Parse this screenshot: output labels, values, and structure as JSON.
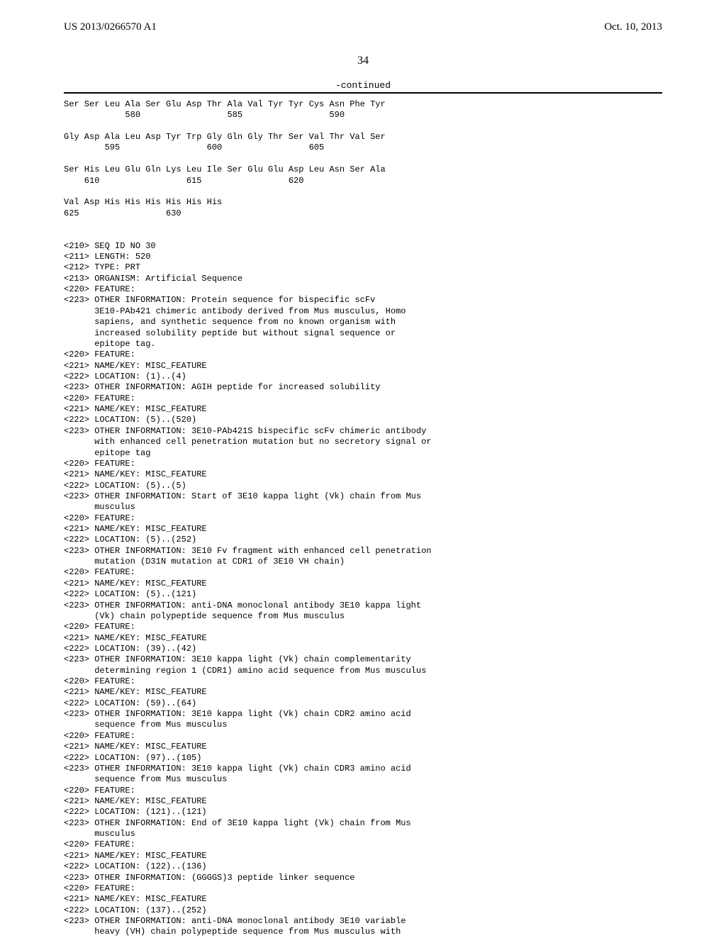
{
  "header": {
    "pub_number": "US 2013/0266570 A1",
    "pub_date": "Oct. 10, 2013"
  },
  "page_number": "34",
  "continued_label": "-continued",
  "sequence_lines": [
    "Ser Ser Leu Ala Ser Glu Asp Thr Ala Val Tyr Tyr Cys Asn Phe Tyr",
    "            580                 585                 590",
    "",
    "Gly Asp Ala Leu Asp Tyr Trp Gly Gln Gly Thr Ser Val Thr Val Ser",
    "        595                 600                 605",
    "",
    "Ser His Leu Glu Gln Lys Leu Ile Ser Glu Glu Asp Leu Asn Ser Ala",
    "    610                 615                 620",
    "",
    "Val Asp His His His His His His",
    "625                 630",
    "",
    "",
    "<210> SEQ ID NO 30",
    "<211> LENGTH: 520",
    "<212> TYPE: PRT",
    "<213> ORGANISM: Artificial Sequence",
    "<220> FEATURE:",
    "<223> OTHER INFORMATION: Protein sequence for bispecific scFv",
    "      3E10-PAb421 chimeric antibody derived from Mus musculus, Homo",
    "      sapiens, and synthetic sequence from no known organism with",
    "      increased solubility peptide but without signal sequence or",
    "      epitope tag.",
    "<220> FEATURE:",
    "<221> NAME/KEY: MISC_FEATURE",
    "<222> LOCATION: (1)..(4)",
    "<223> OTHER INFORMATION: AGIH peptide for increased solubility",
    "<220> FEATURE:",
    "<221> NAME/KEY: MISC_FEATURE",
    "<222> LOCATION: (5)..(520)",
    "<223> OTHER INFORMATION: 3E10-PAb421S bispecific scFv chimeric antibody",
    "      with enhanced cell penetration mutation but no secretory signal or",
    "      epitope tag",
    "<220> FEATURE:",
    "<221> NAME/KEY: MISC_FEATURE",
    "<222> LOCATION: (5)..(5)",
    "<223> OTHER INFORMATION: Start of 3E10 kappa light (Vk) chain from Mus",
    "      musculus",
    "<220> FEATURE:",
    "<221> NAME/KEY: MISC_FEATURE",
    "<222> LOCATION: (5)..(252)",
    "<223> OTHER INFORMATION: 3E10 Fv fragment with enhanced cell penetration",
    "      mutation (D31N mutation at CDR1 of 3E10 VH chain)",
    "<220> FEATURE:",
    "<221> NAME/KEY: MISC_FEATURE",
    "<222> LOCATION: (5)..(121)",
    "<223> OTHER INFORMATION: anti-DNA monoclonal antibody 3E10 kappa light",
    "      (Vk) chain polypeptide sequence from Mus musculus",
    "<220> FEATURE:",
    "<221> NAME/KEY: MISC_FEATURE",
    "<222> LOCATION: (39)..(42)",
    "<223> OTHER INFORMATION: 3E10 kappa light (Vk) chain complementarity",
    "      determining region 1 (CDR1) amino acid sequence from Mus musculus",
    "<220> FEATURE:",
    "<221> NAME/KEY: MISC_FEATURE",
    "<222> LOCATION: (59)..(64)",
    "<223> OTHER INFORMATION: 3E10 kappa light (Vk) chain CDR2 amino acid",
    "      sequence from Mus musculus",
    "<220> FEATURE:",
    "<221> NAME/KEY: MISC_FEATURE",
    "<222> LOCATION: (97)..(105)",
    "<223> OTHER INFORMATION: 3E10 kappa light (Vk) chain CDR3 amino acid",
    "      sequence from Mus musculus",
    "<220> FEATURE:",
    "<221> NAME/KEY: MISC_FEATURE",
    "<222> LOCATION: (121)..(121)",
    "<223> OTHER INFORMATION: End of 3E10 kappa light (Vk) chain from Mus",
    "      musculus",
    "<220> FEATURE:",
    "<221> NAME/KEY: MISC_FEATURE",
    "<222> LOCATION: (122)..(136)",
    "<223> OTHER INFORMATION: (GGGGS)3 peptide linker sequence",
    "<220> FEATURE:",
    "<221> NAME/KEY: MISC_FEATURE",
    "<222> LOCATION: (137)..(252)",
    "<223> OTHER INFORMATION: anti-DNA monoclonal antibody 3E10 variable",
    "      heavy (VH) chain polypeptide sequence from Mus musculus with"
  ]
}
